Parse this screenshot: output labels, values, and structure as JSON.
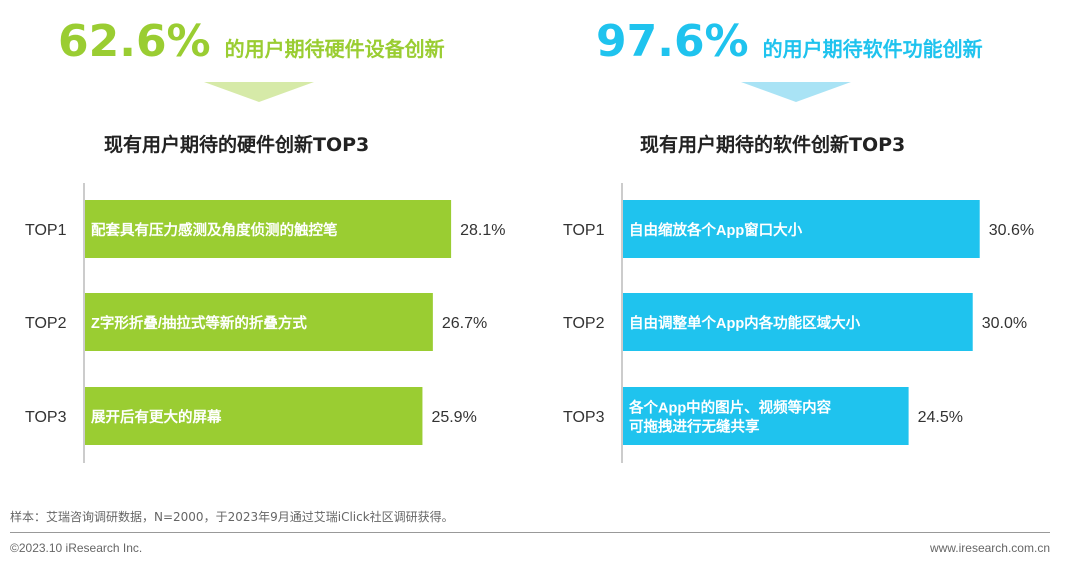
{
  "colors": {
    "hardware": "#9ACD32",
    "hardware_arrow": "#D6EAA8",
    "software": "#1FC3EE",
    "software_arrow": "#A9E3F5",
    "axis": "#999999"
  },
  "left": {
    "big_pct": "62.6%",
    "headline": "的用户期待硬件设备创新",
    "subtitle": "现有用户期待的硬件创新TOP3"
  },
  "right": {
    "big_pct": "97.6%",
    "headline": "的用户期待软件功能创新",
    "subtitle": "现有用户期待的软件创新TOP3"
  },
  "chart_data": [
    {
      "type": "bar",
      "orientation": "horizontal",
      "title": "现有用户期待的硬件创新TOP3",
      "categories": [
        "TOP1",
        "TOP2",
        "TOP3"
      ],
      "bar_labels": [
        [
          "配套具有压力感测及角度侦测的触控笔"
        ],
        [
          "Z字形折叠/抽拉式等新的折叠方式"
        ],
        [
          "展开后有更大的屏幕"
        ]
      ],
      "values": [
        28.1,
        26.7,
        25.9
      ],
      "value_labels": [
        "28.1%",
        "26.7%",
        "25.9%"
      ],
      "unit": "%",
      "xlim": [
        0,
        35
      ],
      "grid": false,
      "legend": "none"
    },
    {
      "type": "bar",
      "orientation": "horizontal",
      "title": "现有用户期待的软件创新TOP3",
      "categories": [
        "TOP1",
        "TOP2",
        "TOP3"
      ],
      "bar_labels": [
        [
          "自由缩放各个App窗口大小"
        ],
        [
          "自由调整单个App内各功能区域大小"
        ],
        [
          "各个App中的图片、视频等内容",
          "可拖拽进行无缝共享"
        ]
      ],
      "values": [
        30.6,
        30.0,
        24.5
      ],
      "value_labels": [
        "30.6%",
        "30.0%",
        "24.5%"
      ],
      "unit": "%",
      "xlim": [
        0,
        35
      ],
      "grid": false,
      "legend": "none"
    }
  ],
  "footer": {
    "note": "样本：艾瑞咨询调研数据，N=2000，于2023年9月通过艾瑞iClick社区调研获得。",
    "copyright": "©2023.10 iResearch Inc.",
    "website": "www.iresearch.com.cn"
  }
}
